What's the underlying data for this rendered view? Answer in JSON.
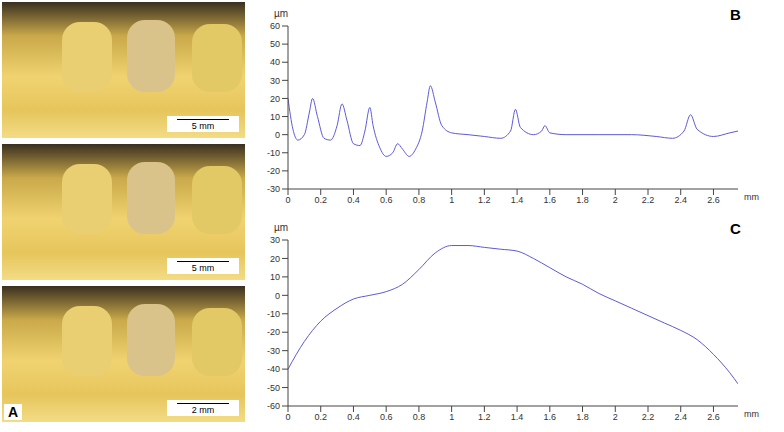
{
  "images": {
    "panel_label": "A",
    "scale_bars": [
      "5 mm",
      "5 mm",
      "2 mm"
    ]
  },
  "chart_data": [
    {
      "type": "line",
      "label": "B",
      "x_label": "mm",
      "y_label": "µm",
      "color": "#5b5bd6",
      "xlim": [
        0,
        2.75
      ],
      "xticks": [
        0,
        0.2,
        0.4,
        0.6,
        0.8,
        1,
        1.2,
        1.4,
        1.6,
        1.8,
        2,
        2.2,
        2.4,
        2.6
      ],
      "ylim": [
        -30,
        60
      ],
      "yticks": [
        -30,
        -20,
        -10,
        0,
        10,
        20,
        30,
        40,
        50,
        60
      ],
      "x": [
        0,
        0.03,
        0.06,
        0.1,
        0.13,
        0.15,
        0.18,
        0.22,
        0.26,
        0.3,
        0.33,
        0.36,
        0.4,
        0.44,
        0.47,
        0.5,
        0.52,
        0.56,
        0.6,
        0.64,
        0.67,
        0.7,
        0.74,
        0.78,
        0.82,
        0.85,
        0.87,
        0.9,
        0.94,
        1.0,
        1.1,
        1.2,
        1.3,
        1.36,
        1.39,
        1.42,
        1.5,
        1.55,
        1.57,
        1.6,
        1.7,
        1.9,
        2.1,
        2.25,
        2.35,
        2.42,
        2.46,
        2.5,
        2.6,
        2.7,
        2.75
      ],
      "values": [
        20,
        3,
        -3,
        0,
        12,
        20,
        10,
        -2,
        -3,
        5,
        17,
        8,
        -5,
        -6,
        2,
        15,
        5,
        -7,
        -12,
        -10,
        -5,
        -8,
        -12,
        -8,
        2,
        18,
        27,
        18,
        5,
        1,
        0,
        -1,
        -2,
        2,
        14,
        4,
        0,
        2,
        5,
        1,
        0,
        0,
        0,
        -1,
        -2,
        2,
        11,
        3,
        -1,
        1,
        2
      ]
    },
    {
      "type": "line",
      "label": "C",
      "x_label": "mm",
      "y_label": "µm",
      "color": "#5b5bd6",
      "xlim": [
        0,
        2.75
      ],
      "xticks": [
        0,
        0.2,
        0.4,
        0.6,
        0.8,
        1,
        1.2,
        1.4,
        1.6,
        1.8,
        2,
        2.2,
        2.4,
        2.6
      ],
      "ylim": [
        -60,
        30
      ],
      "yticks": [
        -60,
        -50,
        -40,
        -30,
        -20,
        -10,
        0,
        10,
        20,
        30
      ],
      "x": [
        0,
        0.1,
        0.2,
        0.3,
        0.4,
        0.5,
        0.6,
        0.7,
        0.8,
        0.9,
        1.0,
        1.1,
        1.2,
        1.3,
        1.4,
        1.5,
        1.6,
        1.7,
        1.8,
        1.9,
        2.0,
        2.1,
        2.2,
        2.3,
        2.4,
        2.5,
        2.6,
        2.7,
        2.75
      ],
      "values": [
        -40,
        -25,
        -14,
        -7,
        -2,
        0,
        2,
        6,
        14,
        23,
        27,
        27,
        26,
        25,
        24,
        20,
        15,
        10,
        6,
        1,
        -3,
        -7,
        -11,
        -15,
        -19,
        -24,
        -32,
        -42,
        -48
      ]
    }
  ]
}
